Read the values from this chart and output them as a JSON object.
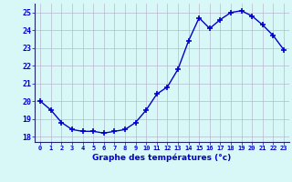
{
  "hours": [
    0,
    1,
    2,
    3,
    4,
    5,
    6,
    7,
    8,
    9,
    10,
    11,
    12,
    13,
    14,
    15,
    16,
    17,
    18,
    19,
    20,
    21,
    22,
    23
  ],
  "temperatures": [
    20.0,
    19.5,
    18.8,
    18.4,
    18.3,
    18.3,
    18.2,
    18.3,
    18.4,
    18.8,
    19.5,
    20.4,
    20.8,
    21.8,
    23.4,
    24.7,
    24.1,
    24.6,
    25.0,
    25.1,
    24.8,
    24.3,
    23.7,
    22.9
  ],
  "bg_color": "#d8f8f8",
  "line_color": "#0000cc",
  "marker_color": "#0000cc",
  "grid_color": "#b8b8cc",
  "axis_label_color": "#0000cc",
  "tick_color": "#0000cc",
  "xlabel": "Graphe des températures (°c)",
  "ylim": [
    17.7,
    25.5
  ],
  "xlim": [
    -0.5,
    23.5
  ],
  "yticks": [
    18,
    19,
    20,
    21,
    22,
    23,
    24,
    25
  ],
  "xticks": [
    0,
    1,
    2,
    3,
    4,
    5,
    6,
    7,
    8,
    9,
    10,
    11,
    12,
    13,
    14,
    15,
    16,
    17,
    18,
    19,
    20,
    21,
    22,
    23
  ]
}
